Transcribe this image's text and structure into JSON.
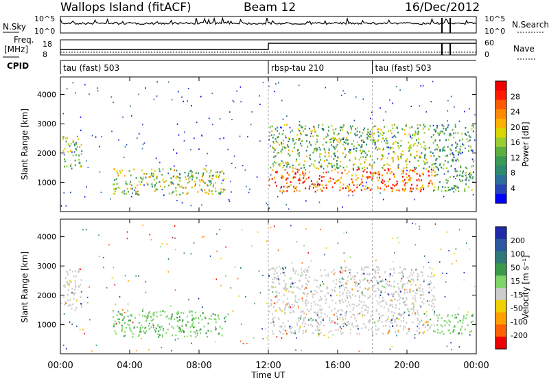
{
  "header": {
    "site": "Wallops Island (fitACF)",
    "beam": "Beam 12",
    "date": "16/Dec/2012"
  },
  "noise": {
    "left_label": "N.Sky",
    "left_ticks": [
      "10^5",
      "10^0"
    ],
    "right_ticks": [
      "10^5",
      "10^0"
    ],
    "right_label": "N.Search"
  },
  "freq": {
    "left_label_1": "Freq.",
    "left_label_2": "[MHz]",
    "left_ticks": [
      "18",
      "8"
    ],
    "right_ticks": [
      "60",
      "0"
    ],
    "right_label": "Nave"
  },
  "cpid": {
    "label": "CPID",
    "segments": [
      {
        "name": "tau (fast) 503",
        "start": 0,
        "end": 12
      },
      {
        "name": "rbsp-tau 210",
        "start": 12,
        "end": 18
      },
      {
        "name": "tau (fast) 503",
        "start": 18,
        "end": 24
      }
    ]
  },
  "power_panel": {
    "ylabel": "Slant Range [km]",
    "yticks": [
      "4000",
      "3000",
      "2000",
      "1000"
    ],
    "colorbar_label": "Power [dB]",
    "colorbar_ticks": [
      "28",
      "24",
      "20",
      "16",
      "12",
      "8",
      "4"
    ],
    "colors": [
      "#0000ff",
      "#2545b8",
      "#2c6e9c",
      "#2e8a6e",
      "#3a9a55",
      "#5cb040",
      "#9acd32",
      "#d8d800",
      "#ffb000",
      "#ff8a00",
      "#ff5a00",
      "#ff1a00",
      "#f00000"
    ]
  },
  "velocity_panel": {
    "ylabel": "Slant Range [km]",
    "yticks": [
      "4000",
      "3000",
      "2000",
      "1000"
    ],
    "colorbar_label": "Velocity [m s⁻¹]",
    "colorbar_ticks": [
      "200",
      "100",
      "50",
      "15",
      "-15",
      "-50",
      "-100",
      "-200"
    ],
    "colors": [
      "#1e2aa8",
      "#2a57a0",
      "#2f7a78",
      "#3a9a4a",
      "#7ed66b",
      "#cccccc",
      "#f0d000",
      "#ffa000",
      "#ff6000",
      "#f00000"
    ]
  },
  "x_axis": {
    "label": "Time UT",
    "ticks": [
      "00:00",
      "04:00",
      "08:00",
      "12:00",
      "16:00",
      "20:00",
      "00:00"
    ]
  },
  "chart_data": [
    {
      "type": "heatmap",
      "title": "Power",
      "xlabel": "Time UT",
      "ylabel": "Slant Range [km]",
      "xlim": [
        0,
        24
      ],
      "ylim": [
        0,
        4600
      ],
      "colorbar": {
        "label": "Power [dB]",
        "range": [
          0,
          32
        ]
      },
      "features": [
        {
          "t": [
            0.1,
            1.2
          ],
          "range": [
            1500,
            2600
          ],
          "power_db": 14
        },
        {
          "t": [
            3.0,
            9.5
          ],
          "range": [
            600,
            1500
          ],
          "power_db": 16
        },
        {
          "t": [
            12.0,
            21.6
          ],
          "range": [
            700,
            1500
          ],
          "power_db": 26
        },
        {
          "t": [
            12.0,
            21.6
          ],
          "range": [
            1500,
            3000
          ],
          "power_db": 14
        },
        {
          "t": [
            21.5,
            23.8
          ],
          "range": [
            700,
            3000
          ],
          "power_db": 10
        }
      ]
    },
    {
      "type": "heatmap",
      "title": "Velocity",
      "xlabel": "Time UT",
      "ylabel": "Slant Range [km]",
      "xlim": [
        0,
        24
      ],
      "ylim": [
        0,
        4600
      ],
      "colorbar": {
        "label": "Velocity [m s⁻¹]",
        "range": [
          -200,
          200
        ]
      },
      "features": [
        {
          "t": [
            0.1,
            1.2
          ],
          "range": [
            1500,
            2900
          ],
          "velocity": 0
        },
        {
          "t": [
            3.0,
            9.5
          ],
          "range": [
            600,
            1500
          ],
          "velocity": 40
        },
        {
          "t": [
            12.0,
            21.6
          ],
          "range": [
            700,
            1500
          ],
          "velocity": 0
        },
        {
          "t": [
            12.0,
            21.6
          ],
          "range": [
            1500,
            3000
          ],
          "velocity": 0
        },
        {
          "t": [
            21.5,
            23.8
          ],
          "range": [
            700,
            1400
          ],
          "velocity": 40
        }
      ]
    }
  ]
}
